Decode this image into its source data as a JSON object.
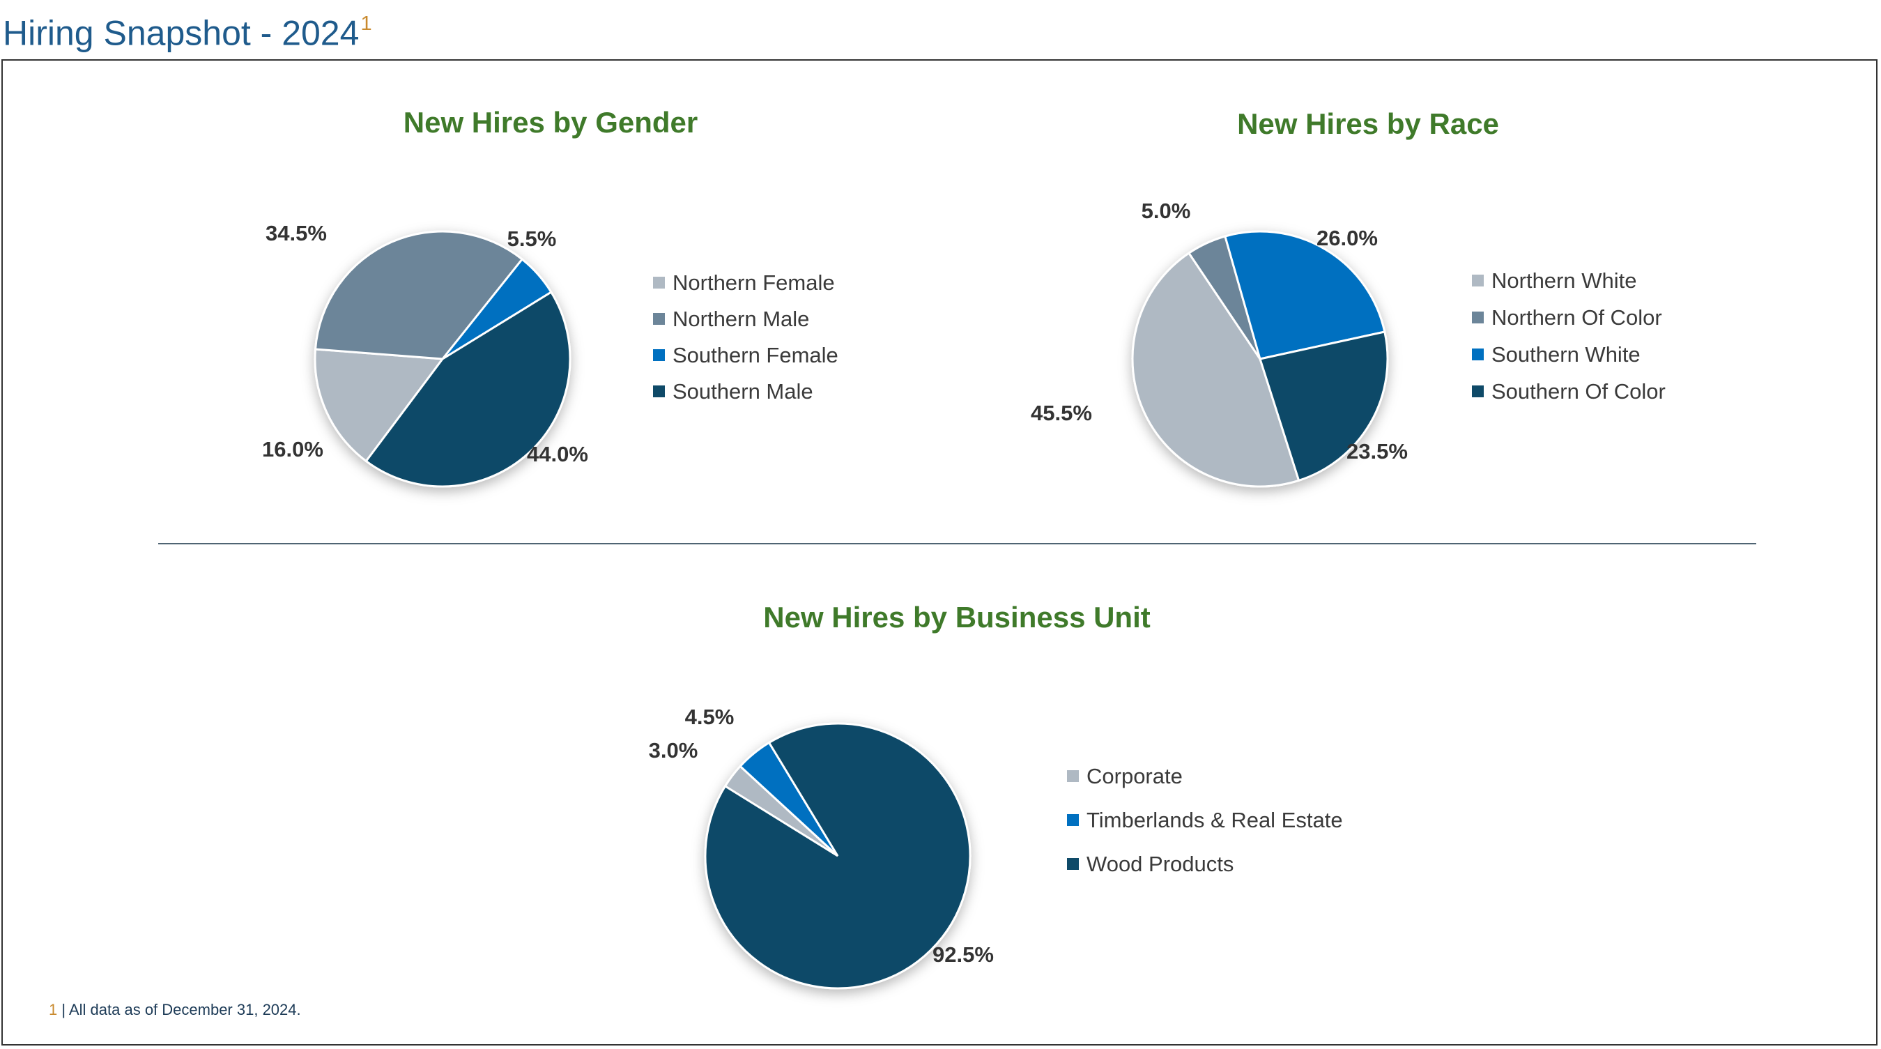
{
  "page": {
    "title": "Hiring Snapshot - 2024",
    "title_superscript": "1",
    "footnote_marker": "1",
    "footnote_text": " | All data as of December 31, 2024."
  },
  "colors": {
    "light_gray_blue": "#afb9c3",
    "slate_blue": "#6c8599",
    "bright_blue": "#0070c0",
    "navy_teal": "#0f4a68",
    "title_green": "#3f7a2a",
    "page_title_blue": "#1f5b8c"
  },
  "chart_data": [
    {
      "type": "pie",
      "title": "New Hires by Gender",
      "labels": [
        "Northern Female",
        "Northern Male",
        "Southern Female",
        "Southern Male"
      ],
      "values": [
        16.0,
        34.5,
        5.5,
        44.0
      ],
      "value_labels": [
        "16.0%",
        "34.5%",
        "5.5%",
        "44.0%"
      ],
      "colors": [
        "#afb9c3",
        "#6c8599",
        "#0070c0",
        "#0f4a68"
      ],
      "legend": "right"
    },
    {
      "type": "pie",
      "title": "New Hires by Race",
      "labels": [
        "Northern White",
        "Northern Of Color",
        "Southern White",
        "Southern Of Color"
      ],
      "values": [
        45.5,
        5.0,
        26.0,
        23.5
      ],
      "value_labels": [
        "45.5%",
        "5.0%",
        "26.0%",
        "23.5%"
      ],
      "colors": [
        "#afb9c3",
        "#6c8599",
        "#0070c0",
        "#0f4a68"
      ],
      "legend": "right"
    },
    {
      "type": "pie",
      "title": "New Hires by Business Unit",
      "labels": [
        "Corporate",
        "Timberlands & Real Estate",
        "Wood Products"
      ],
      "values": [
        3.0,
        4.5,
        92.5
      ],
      "value_labels": [
        "3.0%",
        "4.5%",
        "92.5%"
      ],
      "colors": [
        "#afb9c3",
        "#0070c0",
        "#0f4a68"
      ],
      "legend": "right"
    }
  ]
}
